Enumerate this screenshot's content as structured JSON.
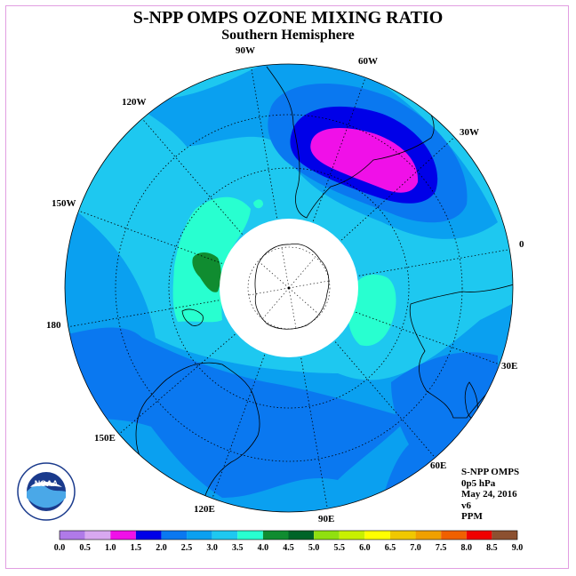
{
  "title": "S-NPP OMPS OZONE MIXING RATIO",
  "subtitle": "Southern Hemisphere",
  "longitude_labels": {
    "lon_90w": "90W",
    "lon_60w": "60W",
    "lon_30w": "30W",
    "lon_0": "0",
    "lon_30e": "30E",
    "lon_60e": "60E",
    "lon_90e": "90E",
    "lon_120e": "120E",
    "lon_150e": "150E",
    "lon_180": "180",
    "lon_150w": "150W",
    "lon_120w": "120W"
  },
  "info": {
    "instrument": "S-NPP OMPS",
    "level": "0p5 hPa",
    "date": "May 24, 2016",
    "version": "v6",
    "units": "PPM"
  },
  "logo": {
    "text": "NOAA",
    "ring_text": "NATIONAL OCEANIC AND ATMOSPHERIC ADMINISTRATION · U.S. DEPARTMENT OF COMMERCE"
  },
  "colorbar": {
    "labels": [
      "0.0",
      "0.5",
      "1.0",
      "1.5",
      "2.0",
      "2.5",
      "3.0",
      "3.5",
      "4.0",
      "4.5",
      "5.0",
      "5.5",
      "6.0",
      "6.5",
      "7.0",
      "7.5",
      "8.0",
      "8.5",
      "9.0"
    ],
    "colors": [
      "#b07ae8",
      "#d8a8f0",
      "#f010e8",
      "#0000e8",
      "#0a78f0",
      "#0aa0f0",
      "#1ec8f0",
      "#28ffd0",
      "#108c30",
      "#006428",
      "#90e010",
      "#c8f000",
      "#ffff00",
      "#f0c800",
      "#f0a000",
      "#f06000",
      "#f00000",
      "#8c5030"
    ]
  },
  "map_colors": {
    "background": "#1ec8f0",
    "level_2_5": "#0aa0f0",
    "level_2_0": "#0a78f0",
    "level_1_5": "#0000e8",
    "level_1_0": "#f010e8",
    "level_3_5": "#28ffd0",
    "level_4_0": "#108c30",
    "pole_mask": "#ffffff"
  }
}
